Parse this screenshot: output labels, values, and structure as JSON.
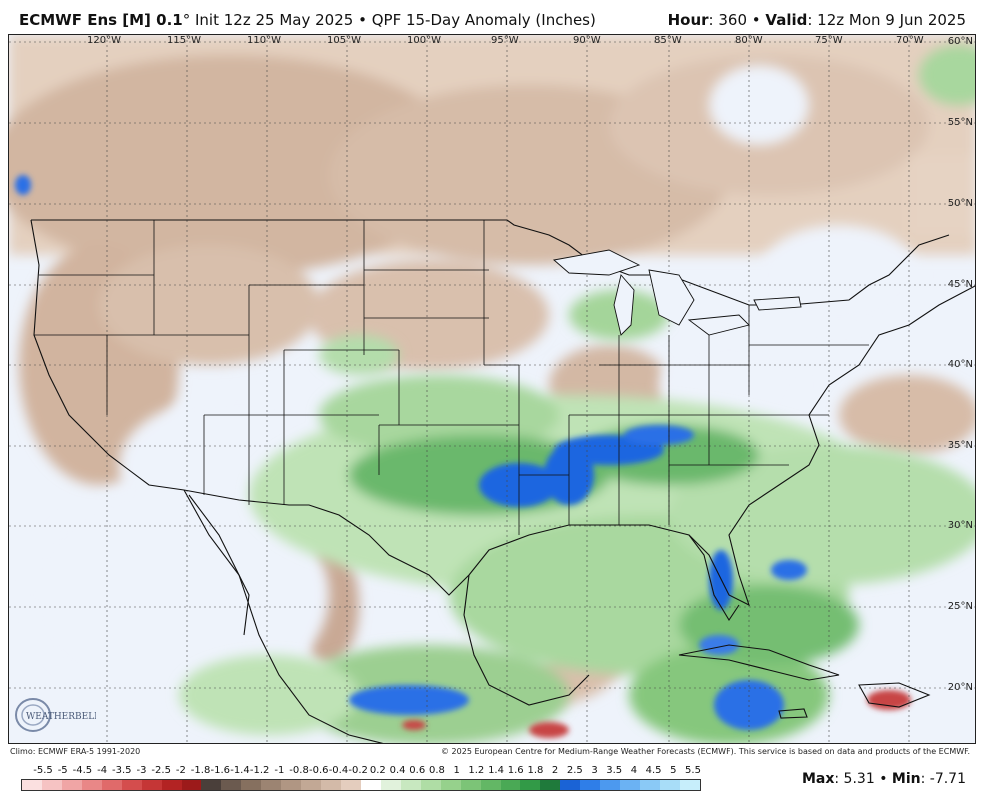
{
  "title": {
    "model": "ECMWF Ens [M] 0.1",
    "degree": "°",
    "init": "Init 12z 25 May 2025",
    "separator": "•",
    "product": "QPF 15-Day Anomaly (Inches)",
    "hour_label": "Hour",
    "hour_value": ": 360",
    "valid_label": "Valid",
    "valid_value": ": 12z Mon 9 Jun 2025"
  },
  "map": {
    "longitude_labels": [
      "120°W",
      "115°W",
      "110°W",
      "105°W",
      "100°W",
      "95°W",
      "90°W",
      "85°W",
      "80°W",
      "75°W",
      "70°W"
    ],
    "latitude_labels": [
      "60°N",
      "55°N",
      "50°N",
      "45°N",
      "40°N",
      "35°N",
      "30°N",
      "25°N",
      "20°N"
    ],
    "colors": {
      "background_dry_light": "#eef3fb",
      "tan_light": "#e6d3c3",
      "tan": "#d3b7a2",
      "tan_dark": "#b79c8a",
      "green_light": "#c4e6bc",
      "green": "#86c98a",
      "green_dark": "#4fa863",
      "blue": "#1f66e0",
      "red": "#d23a3a",
      "border": "#111111"
    }
  },
  "logo": {
    "text": "WEATHERBELL"
  },
  "footer": {
    "climo": "Climo: ECMWF ERA-5 1991-2020",
    "copyright": "© 2025 European Centre for Medium-Range Weather Forecasts (ECMWF). This service is based on data and products of the ECMWF."
  },
  "legend": {
    "ticks": [
      "-5.5",
      "-5",
      "-4.5",
      "-4",
      "-3.5",
      "-3",
      "-2.5",
      "-2",
      "-1.8",
      "-1.6",
      "-1.4",
      "-1.2",
      "-1",
      "-0.8",
      "-0.6",
      "-0.4",
      "-0.2",
      "0.2",
      "0.4",
      "0.6",
      "0.8",
      "1",
      "1.2",
      "1.4",
      "1.6",
      "1.8",
      "2",
      "2.5",
      "3",
      "3.5",
      "4",
      "4.5",
      "5",
      "5.5"
    ],
    "colors": [
      "#fbe0e0",
      "#f6c3c3",
      "#f0a5a5",
      "#e98787",
      "#e06a6a",
      "#d44d4d",
      "#c53636",
      "#b32323",
      "#9c1a1a",
      "#4a3f3a",
      "#6b5a4f",
      "#86705f",
      "#9c8472",
      "#b09683",
      "#c2a895",
      "#d3baa8",
      "#e4cdbe",
      "#ffffff",
      "#e1f2dc",
      "#c8e8c0",
      "#afdda5",
      "#96d18c",
      "#7cc477",
      "#63b765",
      "#4aa955",
      "#329a47",
      "#1f7a3b",
      "#1a63d6",
      "#2f7ee8",
      "#4c99ef",
      "#6bb2f3",
      "#8ac9f6",
      "#a8ddf8",
      "#c7eefb"
    ]
  },
  "stats": {
    "max_label": "Max",
    "max_value": ": 5.31",
    "sep": "•",
    "min_label": "Min",
    "min_value": ": -7.71"
  }
}
